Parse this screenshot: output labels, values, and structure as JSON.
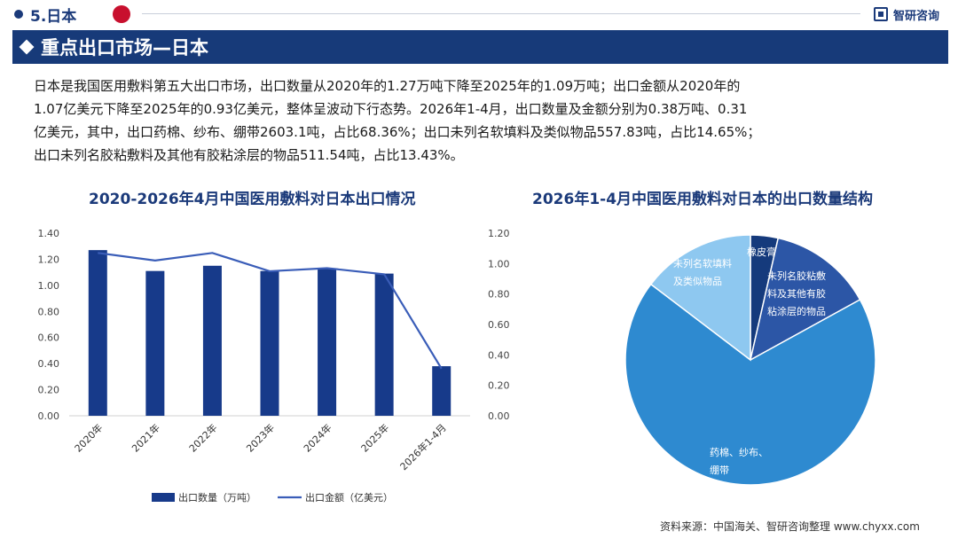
{
  "header": {
    "section_label": "5.日本",
    "brand": "智研咨询"
  },
  "banner": {
    "title": "重点出口市场—日本"
  },
  "intro": {
    "lines": [
      "日本是我国医用敷料第五大出口市场，出口数量从2020年的1.27万吨下降至2025年的1.09万吨；出口金额从2020年的",
      "1.07亿美元下降至2025年的0.93亿美元，整体呈波动下行态势。2026年1-4月，出口数量及金额分别为0.38万吨、0.31",
      "亿美元，其中，出口药棉、纱布、绷带2603.1吨，占比68.36%；出口未列名软填料及类似物品557.83吨，占比14.65%；",
      "出口未列名胶粘敷料及其他有胶粘涂层的物品511.54吨，占比13.43%。"
    ]
  },
  "chart_data": [
    {
      "type": "bar",
      "title": "2020-2026年4月中国医用敷料对日本出口情况",
      "categories": [
        "2020年",
        "2021年",
        "2022年",
        "2023年",
        "2024年",
        "2025年",
        "2026年1-4月"
      ],
      "ylim": [
        0,
        1.4
      ],
      "y2lim": [
        0,
        1.2
      ],
      "yticks": [
        "0.00",
        "0.20",
        "0.40",
        "0.60",
        "0.80",
        "1.00",
        "1.20",
        "1.40"
      ],
      "y2ticks": [
        "0.00",
        "0.20",
        "0.40",
        "0.60",
        "0.80",
        "1.00",
        "1.20"
      ],
      "series": [
        {
          "name": "出口数量（万吨）",
          "type": "bar",
          "axis": "left",
          "color": "#173a8a",
          "values": [
            1.27,
            1.11,
            1.15,
            1.11,
            1.13,
            1.09,
            0.38
          ]
        },
        {
          "name": "出口金额（亿美元）",
          "type": "line",
          "axis": "right",
          "color": "#3a5db8",
          "values": [
            1.07,
            1.02,
            1.07,
            0.95,
            0.97,
            0.93,
            0.31
          ]
        }
      ],
      "legend": "bottom",
      "grid": false
    },
    {
      "type": "pie",
      "title": "2026年1-4月中国医用敷料对日本的出口数量结构",
      "slices": [
        {
          "label": "橡皮膏",
          "value": 3.56,
          "color": "#153a7c"
        },
        {
          "label": "未列名胶粘敷料及其他有胶粘涂层的物品",
          "value": 13.43,
          "color": "#2c56a6"
        },
        {
          "label": "药棉、纱布、绷带",
          "value": 68.36,
          "color": "#2e8ad0"
        },
        {
          "label": "未列名软填料及类似物品",
          "value": 14.65,
          "color": "#8ec8f0"
        }
      ]
    }
  ],
  "pie_labels": {
    "plaster": "橡皮膏",
    "adhesive": [
      "未列名胶粘敷",
      "料及其他有胶",
      "粘涂层的物品"
    ],
    "cotton": [
      "药棉、纱布、",
      "绷带"
    ],
    "padding": [
      "未列名软填料",
      "及类似物品"
    ]
  },
  "source": "资料来源：中国海关、智研咨询整理 www.chyxx.com"
}
